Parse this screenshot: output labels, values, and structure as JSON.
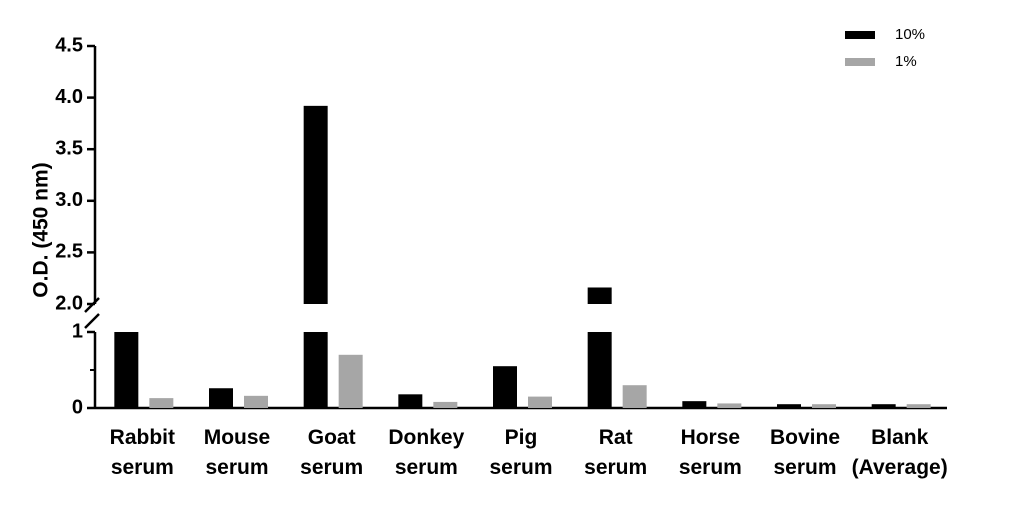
{
  "chart_data": {
    "type": "bar",
    "y_label": "O.D. (450 nm)",
    "categories": [
      "Rabbit serum",
      "Mouse serum",
      "Goat serum",
      "Donkey serum",
      "Pig serum",
      "Rat serum",
      "Horse serum",
      "Bovine serum",
      "Blank (Average)"
    ],
    "series": [
      {
        "name": "10%",
        "color": "#000000",
        "values": [
          1.0,
          0.26,
          3.92,
          0.18,
          0.55,
          2.16,
          0.09,
          0.05,
          0.05
        ]
      },
      {
        "name": "1%",
        "color": "#a6a6a6",
        "values": [
          0.13,
          0.16,
          0.7,
          0.08,
          0.15,
          0.3,
          0.06,
          0.05,
          0.05
        ]
      }
    ],
    "y_segments": [
      {
        "ylim": [
          0,
          1
        ],
        "yticks": [
          0,
          1
        ],
        "yminorticks": [
          0.5
        ]
      },
      {
        "ylim": [
          2,
          4.5
        ],
        "yticks": [
          {
            "value": 2,
            "label": "2.0"
          },
          {
            "value": 2.5,
            "label": "2.5"
          },
          {
            "value": 3,
            "label": "3.0"
          },
          {
            "value": 3.5,
            "label": "3.5"
          },
          {
            "value": 4,
            "label": "4.0"
          },
          {
            "value": 4.5,
            "label": "4.5"
          }
        ]
      }
    ],
    "legend": "top-right"
  }
}
